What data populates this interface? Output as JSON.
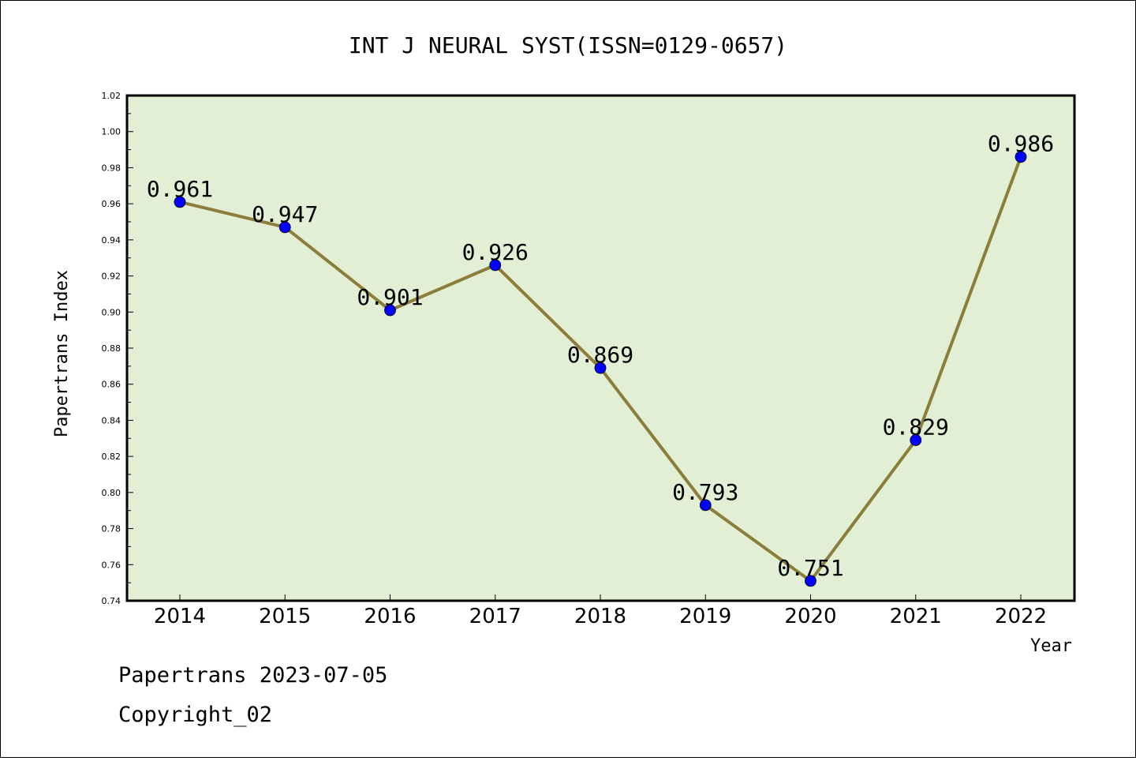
{
  "chart_data": {
    "type": "line",
    "title": "INT J NEURAL SYST(ISSN=0129-0657)",
    "xlabel": "Year",
    "ylabel": "Papertrans Index",
    "categories": [
      "2014",
      "2015",
      "2016",
      "2017",
      "2018",
      "2019",
      "2020",
      "2021",
      "2022"
    ],
    "values": [
      0.961,
      0.947,
      0.901,
      0.926,
      0.869,
      0.793,
      0.751,
      0.829,
      0.986
    ],
    "data_labels": [
      "0.961",
      "0.947",
      "0.901",
      "0.926",
      "0.869",
      "0.793",
      "0.751",
      "0.829",
      "0.986"
    ],
    "ylim": [
      0.74,
      1.02
    ],
    "yticks": [
      "0.74",
      "0.76",
      "0.78",
      "0.80",
      "0.82",
      "0.84",
      "0.86",
      "0.88",
      "0.90",
      "0.92",
      "0.94",
      "0.96",
      "0.98",
      "1.00",
      "1.02"
    ],
    "grid": false,
    "colors": {
      "plot_background": "#e2efd5",
      "line": "#8b7d3a",
      "marker": "#0000ff"
    }
  },
  "footer": {
    "line1": "Papertrans 2023-07-05",
    "line2": "Copyright_02"
  }
}
